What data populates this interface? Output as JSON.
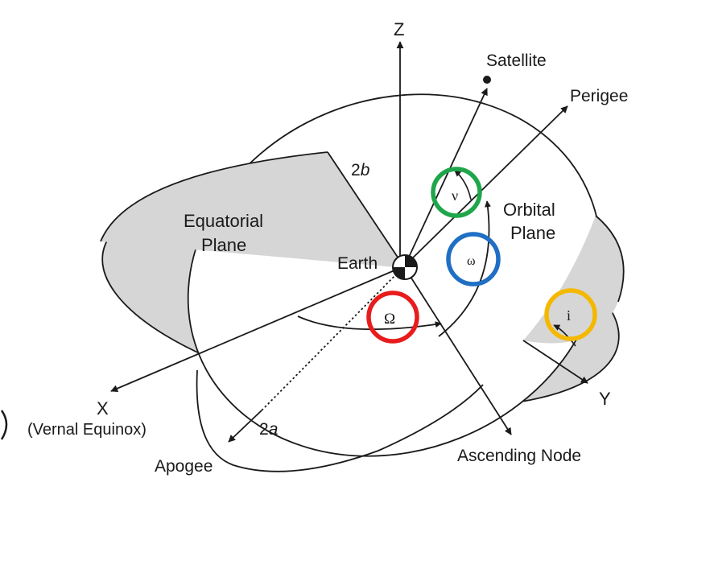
{
  "diagram": {
    "labels": {
      "z_axis": "Z",
      "x_axis": "X",
      "x_axis_note": "(Vernal Equinox)",
      "y_axis": "Y",
      "satellite": "Satellite",
      "perigee": "Perigee",
      "apogee": "Apogee",
      "orbital_plane_line1": "Orbital",
      "orbital_plane_line2": "Plane",
      "equatorial_plane_line1": "Equatorial",
      "equatorial_plane_line2": "Plane",
      "earth": "Earth",
      "ascending_node": "Ascending Node",
      "semi_minor_prefix": "2",
      "semi_minor_var": "b",
      "semi_major_prefix": "2",
      "semi_major_var": "a"
    },
    "angles": {
      "true_anomaly": "ν",
      "argument_of_perigee": "ω",
      "raan": "Ω",
      "inclination": "i"
    },
    "colors": {
      "plane_fill": "#d6d6d6",
      "line": "#1a1a1a",
      "true_anomaly_marker": "#1fa64a",
      "argument_of_perigee_marker": "#1f6fc4",
      "raan_marker": "#e81c1c",
      "inclination_marker": "#f5b800"
    }
  }
}
